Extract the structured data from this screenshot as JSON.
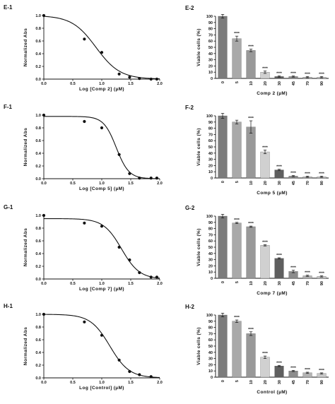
{
  "chart_data": [
    {
      "id": "E-1",
      "panel_label": "E-1",
      "type": "scatter",
      "xlabel": "Log [Comp 2] (µM)",
      "ylabel": "Normalized Abs",
      "xlim": [
        0,
        2
      ],
      "ylim": [
        0,
        1.0
      ],
      "xticks": [
        "0.0",
        "0.5",
        "1.0",
        "1.5",
        "2.0"
      ],
      "yticks": [
        "0.0",
        "0.2",
        "0.4",
        "0.6",
        "0.8",
        "1.0"
      ],
      "points": [
        [
          0,
          1.0
        ],
        [
          0.7,
          0.63
        ],
        [
          1.0,
          0.42
        ],
        [
          1.3,
          0.08
        ],
        [
          1.48,
          0.03
        ],
        [
          1.65,
          0.01
        ],
        [
          1.85,
          0.0
        ],
        [
          1.95,
          0.0
        ]
      ],
      "fit": {
        "top": 1.0,
        "bottom": 0.0,
        "logIC50": 0.9,
        "hill": 2.1
      }
    },
    {
      "id": "E-2",
      "panel_label": "E-2",
      "type": "bar",
      "xlabel": "Comp 2 (µM)",
      "ylabel": "Viable cells (%)",
      "ylim": [
        0,
        100
      ],
      "yticks": [
        "0",
        "10",
        "20",
        "30",
        "40",
        "50",
        "60",
        "70",
        "80",
        "90",
        "100"
      ],
      "categories": [
        "0",
        "5",
        "10",
        "20",
        "30",
        "45",
        "70",
        "90"
      ],
      "values": [
        100,
        64,
        45,
        10,
        3,
        3,
        2,
        2
      ],
      "errors": [
        3,
        4,
        2,
        2,
        1,
        1,
        1,
        1
      ],
      "annotations": [
        "",
        "****",
        "****",
        "****",
        "****",
        "****",
        "****",
        "****"
      ]
    },
    {
      "id": "F-1",
      "panel_label": "F-1",
      "type": "scatter",
      "xlabel": "Log [Comp 5] (µM)",
      "ylabel": "Normalized Abs",
      "xlim": [
        0,
        2
      ],
      "ylim": [
        0,
        1.0
      ],
      "xticks": [
        "0.0",
        "0.5",
        "1.0",
        "1.5",
        "2.0"
      ],
      "yticks": [
        "0.0",
        "0.2",
        "0.4",
        "0.6",
        "0.8",
        "1.0"
      ],
      "points": [
        [
          0,
          1.0
        ],
        [
          0.7,
          0.9
        ],
        [
          1.0,
          0.8
        ],
        [
          1.3,
          0.38
        ],
        [
          1.48,
          0.08
        ],
        [
          1.65,
          0.01
        ],
        [
          1.85,
          0.01
        ],
        [
          1.95,
          0.01
        ]
      ],
      "fit": {
        "top": 0.98,
        "bottom": 0.0,
        "logIC50": 1.25,
        "hill": 4.0
      }
    },
    {
      "id": "F-2",
      "panel_label": "F-2",
      "type": "bar",
      "xlabel": "Comp 5 (µM)",
      "ylabel": "Viable cells (%)",
      "ylim": [
        0,
        100
      ],
      "yticks": [
        "0",
        "10",
        "20",
        "30",
        "40",
        "50",
        "60",
        "70",
        "80",
        "90",
        "100"
      ],
      "categories": [
        "0",
        "5",
        "10",
        "20",
        "30",
        "45",
        "70",
        "90"
      ],
      "values": [
        100,
        90,
        82,
        42,
        13,
        3,
        2,
        2
      ],
      "errors": [
        4,
        3,
        10,
        3,
        1,
        1,
        1,
        1
      ],
      "annotations": [
        "",
        "",
        "****",
        "****",
        "****",
        "****",
        "****",
        "****"
      ]
    },
    {
      "id": "G-1",
      "panel_label": "G-1",
      "type": "scatter",
      "xlabel": "Log [Comp 7] (µM)",
      "ylabel": "Normalized Abs",
      "xlim": [
        0,
        2
      ],
      "ylim": [
        0,
        1.0
      ],
      "xticks": [
        "0.0",
        "0.5",
        "1.0",
        "1.5",
        "2.0"
      ],
      "yticks": [
        "0.0",
        "0.2",
        "0.4",
        "0.6",
        "0.8",
        "1.0"
      ],
      "points": [
        [
          0,
          1.0
        ],
        [
          0.7,
          0.88
        ],
        [
          1.0,
          0.83
        ],
        [
          1.3,
          0.5
        ],
        [
          1.48,
          0.3
        ],
        [
          1.65,
          0.1
        ],
        [
          1.85,
          0.03
        ],
        [
          1.95,
          0.03
        ]
      ],
      "fit": {
        "top": 0.95,
        "bottom": 0.0,
        "logIC50": 1.34,
        "hill": 2.8
      }
    },
    {
      "id": "G-2",
      "panel_label": "G-2",
      "type": "bar",
      "xlabel": "Comp 7 (µM)",
      "ylabel": "Viable cells (%)",
      "ylim": [
        0,
        100
      ],
      "yticks": [
        "0",
        "10",
        "20",
        "30",
        "40",
        "50",
        "60",
        "70",
        "80",
        "90",
        "100"
      ],
      "categories": [
        "0",
        "5",
        "10",
        "20",
        "30",
        "45",
        "70",
        "90"
      ],
      "values": [
        100,
        89,
        83,
        53,
        32,
        11,
        4,
        3
      ],
      "errors": [
        3,
        1,
        1,
        1,
        1,
        2,
        1,
        1
      ],
      "annotations": [
        "",
        "****",
        "****",
        "****",
        "****",
        "****",
        "****",
        "****"
      ]
    },
    {
      "id": "H-1",
      "panel_label": "H-1",
      "type": "scatter",
      "xlabel": "Log [Control] (µM)",
      "ylabel": "Normalized Abs",
      "xlim": [
        0,
        2
      ],
      "ylim": [
        0,
        1.0
      ],
      "xticks": [
        "0.0",
        "0.5",
        "1.0",
        "1.5",
        "2.0"
      ],
      "yticks": [
        "0.0",
        "0.2",
        "0.4",
        "0.6",
        "0.8",
        "1.0"
      ],
      "points": [
        [
          0,
          1.0
        ],
        [
          0.7,
          0.88
        ],
        [
          1.0,
          0.67
        ],
        [
          1.3,
          0.28
        ],
        [
          1.48,
          0.1
        ],
        [
          1.65,
          0.05
        ],
        [
          1.85,
          0.02
        ]
      ],
      "fit": {
        "top": 1.0,
        "bottom": 0.0,
        "logIC50": 1.14,
        "hill": 2.6
      }
    },
    {
      "id": "H-2",
      "panel_label": "H-2",
      "type": "bar",
      "xlabel": "Control (µM)",
      "ylabel": "Viable cells (%)",
      "ylim": [
        0,
        100
      ],
      "yticks": [
        "0",
        "10",
        "20",
        "30",
        "40",
        "50",
        "60",
        "70",
        "80",
        "90",
        "100"
      ],
      "categories": [
        "0",
        "5",
        "10",
        "20",
        "30",
        "45",
        "70",
        "90"
      ],
      "values": [
        100,
        90,
        70,
        32,
        18,
        10,
        7,
        6
      ],
      "errors": [
        3,
        2,
        3,
        2,
        1,
        1,
        1,
        1
      ],
      "annotations": [
        "",
        "****",
        "****",
        "****",
        "****",
        "****",
        "****",
        "****"
      ]
    }
  ],
  "colors": {
    "bars": [
      "#7c7c7c",
      "#a9a9a9",
      "#999999",
      "#d0d0d0",
      "#5f5f5f",
      "#8c8c8c",
      "#b4b4b4",
      "#c8c8c8"
    ],
    "axis": "#111111",
    "curve": "#111111"
  }
}
